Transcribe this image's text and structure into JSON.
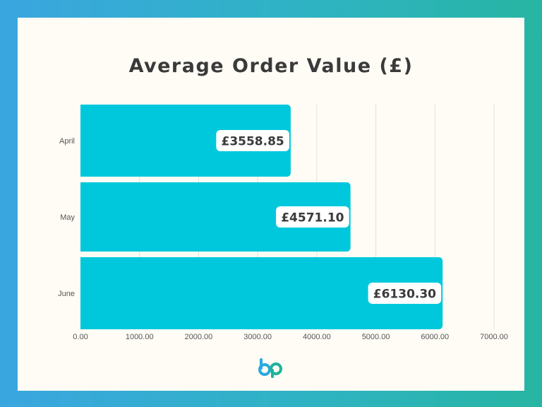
{
  "chart_data": {
    "type": "bar",
    "orientation": "horizontal",
    "title": "Average Order Value (£)",
    "categories": [
      "April",
      "May",
      "June"
    ],
    "values": [
      3558.85,
      4571.1,
      6130.3
    ],
    "value_labels": [
      "£3558.85",
      "£4571.10",
      "£6130.30"
    ],
    "xlim": [
      0,
      7000
    ],
    "x_ticks": [
      0,
      1000,
      2000,
      3000,
      4000,
      5000,
      6000,
      7000
    ],
    "x_tick_labels": [
      "0.00",
      "1000.00",
      "2000.00",
      "3000.00",
      "4000.00",
      "5000.00",
      "6000.00",
      "7000.00"
    ],
    "grid": "vertical",
    "legend": "none",
    "bar_color": "#00c8dc"
  },
  "colors": {
    "title": "#3a3a3a",
    "grid": "#e2e0da",
    "tick_text": "#555555",
    "logo_blue": "#29a9e0",
    "logo_teal": "#1fb39a"
  }
}
